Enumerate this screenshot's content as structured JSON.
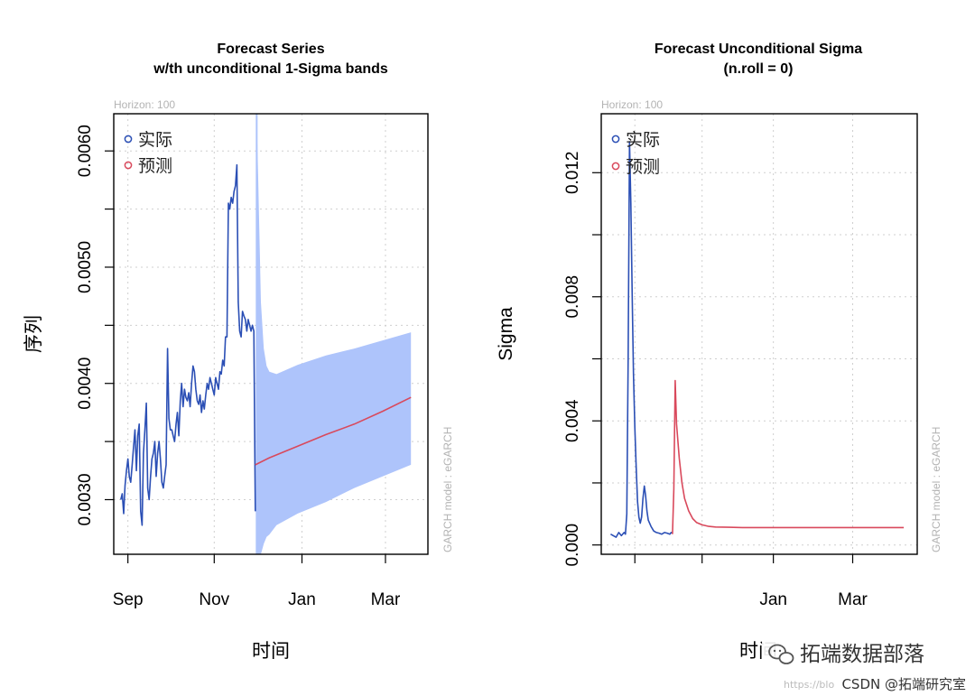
{
  "chart_data": [
    {
      "type": "line",
      "title": "Forecast Series",
      "subtitle": "w/th unconditional 1-Sigma bands",
      "horizon_label": "Horizon: 100",
      "side_label": "GARCH model : eGARCH",
      "xlabel": "时间",
      "ylabel": "序列",
      "ylim": [
        0.00253,
        0.00632
      ],
      "xlim": [
        -10,
        212
      ],
      "x_ticks": [
        {
          "label": "Sep",
          "x": 0
        },
        {
          "label": "Nov",
          "x": 61
        },
        {
          "label": "Jan",
          "x": 123
        },
        {
          "label": "Mar",
          "x": 182
        }
      ],
      "y_ticks": [
        {
          "label": "0.0030",
          "y": 0.003
        },
        {
          "label": "0.0040",
          "y": 0.004
        },
        {
          "label": "0.0050",
          "y": 0.005
        },
        {
          "label": "0.0060",
          "y": 0.006
        }
      ],
      "legend": [
        {
          "label": "实际",
          "color": "#2b4fb5"
        },
        {
          "label": "预测",
          "color": "#d9495c"
        }
      ],
      "series": [
        {
          "name": "实际",
          "color": "#2b4fb5",
          "points": [
            [
              -5,
              0.003
            ],
            [
              -4,
              0.00305
            ],
            [
              -3,
              0.00288
            ],
            [
              -2,
              0.00312
            ],
            [
              -1,
              0.00325
            ],
            [
              0,
              0.00335
            ],
            [
              1,
              0.0032
            ],
            [
              2,
              0.00315
            ],
            [
              3,
              0.0033
            ],
            [
              4,
              0.00345
            ],
            [
              5,
              0.0036
            ],
            [
              6,
              0.00325
            ],
            [
              7,
              0.00355
            ],
            [
              8,
              0.00365
            ],
            [
              9,
              0.0029
            ],
            [
              10,
              0.00278
            ],
            [
              11,
              0.0034
            ],
            [
              12,
              0.0036
            ],
            [
              13,
              0.00383
            ],
            [
              14,
              0.0031
            ],
            [
              15,
              0.003
            ],
            [
              16,
              0.0032
            ],
            [
              17,
              0.00335
            ],
            [
              18,
              0.0034
            ],
            [
              19,
              0.0035
            ],
            [
              20,
              0.0032
            ],
            [
              21,
              0.0034
            ],
            [
              22,
              0.0035
            ],
            [
              23,
              0.00335
            ],
            [
              24,
              0.00315
            ],
            [
              25,
              0.0031
            ],
            [
              26,
              0.0032
            ],
            [
              27,
              0.0033
            ],
            [
              28,
              0.0043
            ],
            [
              29,
              0.0037
            ],
            [
              30,
              0.0036
            ],
            [
              31,
              0.0036
            ],
            [
              32,
              0.00355
            ],
            [
              33,
              0.0035
            ],
            [
              34,
              0.00365
            ],
            [
              35,
              0.00375
            ],
            [
              36,
              0.00355
            ],
            [
              37,
              0.00385
            ],
            [
              38,
              0.004
            ],
            [
              39,
              0.0038
            ],
            [
              40,
              0.00395
            ],
            [
              41,
              0.00388
            ],
            [
              42,
              0.00385
            ],
            [
              43,
              0.00392
            ],
            [
              44,
              0.0038
            ],
            [
              45,
              0.004
            ],
            [
              46,
              0.00415
            ],
            [
              47,
              0.0041
            ],
            [
              48,
              0.00395
            ],
            [
              49,
              0.00385
            ],
            [
              50,
              0.00382
            ],
            [
              51,
              0.0039
            ],
            [
              52,
              0.00375
            ],
            [
              53,
              0.00385
            ],
            [
              54,
              0.00378
            ],
            [
              55,
              0.0039
            ],
            [
              56,
              0.004
            ],
            [
              57,
              0.00395
            ],
            [
              58,
              0.00405
            ],
            [
              59,
              0.004
            ],
            [
              60,
              0.00395
            ],
            [
              61,
              0.0039
            ],
            [
              62,
              0.00405
            ],
            [
              63,
              0.004
            ],
            [
              64,
              0.00395
            ],
            [
              65,
              0.0041
            ],
            [
              66,
              0.00408
            ],
            [
              67,
              0.0042
            ],
            [
              68,
              0.00415
            ],
            [
              69,
              0.0044
            ],
            [
              70,
              0.0044
            ],
            [
              71,
              0.00555
            ],
            [
              72,
              0.0055
            ],
            [
              73,
              0.0056
            ],
            [
              74,
              0.00555
            ],
            [
              75,
              0.00565
            ],
            [
              76,
              0.0057
            ],
            [
              77,
              0.00588
            ],
            [
              78,
              0.0047
            ],
            [
              79,
              0.00445
            ],
            [
              80,
              0.0044
            ],
            [
              81,
              0.00462
            ],
            [
              82,
              0.00458
            ],
            [
              83,
              0.00455
            ],
            [
              84,
              0.00445
            ],
            [
              85,
              0.00455
            ],
            [
              86,
              0.0045
            ],
            [
              87,
              0.00445
            ],
            [
              88,
              0.0045
            ],
            [
              89,
              0.00445
            ],
            [
              90,
              0.0029
            ]
          ]
        },
        {
          "name": "预测",
          "color": "#d9495c",
          "points": [
            [
              90,
              0.0033
            ],
            [
              100,
              0.00336
            ],
            [
              120,
              0.00346
            ],
            [
              140,
              0.00356
            ],
            [
              160,
              0.00365
            ],
            [
              180,
              0.00376
            ],
            [
              200,
              0.00388
            ]
          ]
        }
      ],
      "band": {
        "name": "1-Sigma band",
        "color": "#aec4fb",
        "spike_x": 91,
        "upper": [
          [
            91,
            0.00632
          ],
          [
            92,
            0.0058
          ],
          [
            94,
            0.0047
          ],
          [
            96,
            0.0043
          ],
          [
            98,
            0.00415
          ],
          [
            100,
            0.0041
          ],
          [
            105,
            0.00408
          ],
          [
            120,
            0.00416
          ],
          [
            140,
            0.00424
          ],
          [
            160,
            0.0043
          ],
          [
            180,
            0.00437
          ],
          [
            200,
            0.00444
          ]
        ],
        "lower": [
          [
            91,
            0.00253
          ],
          [
            92,
            0.00253
          ],
          [
            94,
            0.00253
          ],
          [
            96,
            0.00262
          ],
          [
            98,
            0.00268
          ],
          [
            100,
            0.0027
          ],
          [
            105,
            0.00278
          ],
          [
            120,
            0.00288
          ],
          [
            140,
            0.00298
          ],
          [
            160,
            0.0031
          ],
          [
            180,
            0.0032
          ],
          [
            200,
            0.0033
          ]
        ]
      }
    },
    {
      "type": "line",
      "title": "Forecast Unconditional Sigma",
      "subtitle": "(n.roll = 0)",
      "horizon_label": "Horizon: 100",
      "side_label": "GARCH model : eGARCH",
      "xlabel": "时间",
      "ylabel": "Sigma",
      "ylim": [
        -0.0003,
        0.0139
      ],
      "xlim": [
        -5,
        230
      ],
      "x_ticks": [
        {
          "label": "Jan",
          "x": 123
        },
        {
          "label": "Mar",
          "x": 182
        }
      ],
      "y_ticks": [
        {
          "label": "0.000",
          "y": 0.0
        },
        {
          "label": "0.004",
          "y": 0.004
        },
        {
          "label": "0.008",
          "y": 0.008
        },
        {
          "label": "0.012",
          "y": 0.012
        }
      ],
      "legend": [
        {
          "label": "实际",
          "color": "#2b4fb5"
        },
        {
          "label": "预测",
          "color": "#d9495c"
        }
      ],
      "series": [
        {
          "name": "实际",
          "color": "#2b4fb5",
          "points": [
            [
              2,
              0.00035
            ],
            [
              4,
              0.0003
            ],
            [
              6,
              0.00025
            ],
            [
              8,
              0.0004
            ],
            [
              10,
              0.0003
            ],
            [
              12,
              0.0004
            ],
            [
              13,
              0.00035
            ],
            [
              14,
              0.001
            ],
            [
              15,
              0.006
            ],
            [
              16,
              0.013
            ],
            [
              17,
              0.011
            ],
            [
              18,
              0.008
            ],
            [
              19,
              0.0055
            ],
            [
              20,
              0.0038
            ],
            [
              21,
              0.0025
            ],
            [
              22,
              0.0014
            ],
            [
              23,
              0.0009
            ],
            [
              24,
              0.0007
            ],
            [
              25,
              0.0009
            ],
            [
              26,
              0.0015
            ],
            [
              27,
              0.0019
            ],
            [
              28,
              0.0016
            ],
            [
              29,
              0.0011
            ],
            [
              30,
              0.0008
            ],
            [
              32,
              0.0006
            ],
            [
              34,
              0.00045
            ],
            [
              36,
              0.0004
            ],
            [
              38,
              0.00038
            ],
            [
              40,
              0.00035
            ],
            [
              42,
              0.0004
            ],
            [
              44,
              0.00038
            ],
            [
              46,
              0.00035
            ],
            [
              47,
              0.0004
            ],
            [
              48,
              0.00038
            ]
          ]
        },
        {
          "name": "预测",
          "color": "#d9495c",
          "points": [
            [
              48,
              0.00035
            ],
            [
              49,
              0.0018
            ],
            [
              50,
              0.0053
            ],
            [
              51,
              0.0039
            ],
            [
              53,
              0.0028
            ],
            [
              55,
              0.002
            ],
            [
              57,
              0.0015
            ],
            [
              60,
              0.0011
            ],
            [
              63,
              0.00085
            ],
            [
              66,
              0.00072
            ],
            [
              70,
              0.00065
            ],
            [
              75,
              0.0006
            ],
            [
              80,
              0.00058
            ],
            [
              90,
              0.00057
            ],
            [
              100,
              0.00056
            ],
            [
              120,
              0.00056
            ],
            [
              150,
              0.00056
            ],
            [
              180,
              0.00056
            ],
            [
              220,
              0.00056
            ]
          ]
        }
      ]
    }
  ],
  "watermark": {
    "brand": "拓端数据部落",
    "credit": "CSDN @拓端研究室",
    "url_hint": "https://blo"
  }
}
